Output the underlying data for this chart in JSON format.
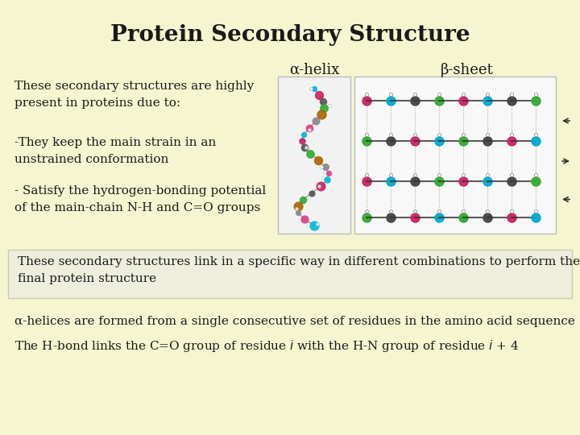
{
  "background_color": "#f5f5d0",
  "title": "Protein Secondary Structure",
  "title_fontsize": 20,
  "title_color": "#1a1a1a",
  "alpha_helix_label": "α-helix",
  "beta_sheet_label": "β-sheet",
  "label_fontsize": 13,
  "bullet_text_1": "These secondary structures are highly\npresent in proteins due to:",
  "bullet_text_2": "-They keep the main strain in an\nunstrained conformation",
  "bullet_text_3": "- Satisfy the hydrogen-bonding potential\nof the main-chain N-H and C=O groups",
  "bottom_text_1": "These secondary structures link in a specific way in different combinations to perform the\nfinal protein structure",
  "bottom_text_2": "α-helices are formed from a single consecutive set of residues in the amino acid sequence",
  "bottom_text_3_part1": "The H-bond links the C=O group of residue ",
  "bottom_text_3_italic": "i",
  "bottom_text_3_part2": " with the H-N group of residue ",
  "bottom_text_3_italic2": "i",
  "bottom_text_3_part3": " + 4",
  "body_fontsize": 11,
  "text_color": "#1a1a1a",
  "img_border_color": "#bbbbbb",
  "img_bg_alpha": "#f8f8f8",
  "box_facecolor": "#eeeedd",
  "box_edgecolor": "#ccccaa"
}
